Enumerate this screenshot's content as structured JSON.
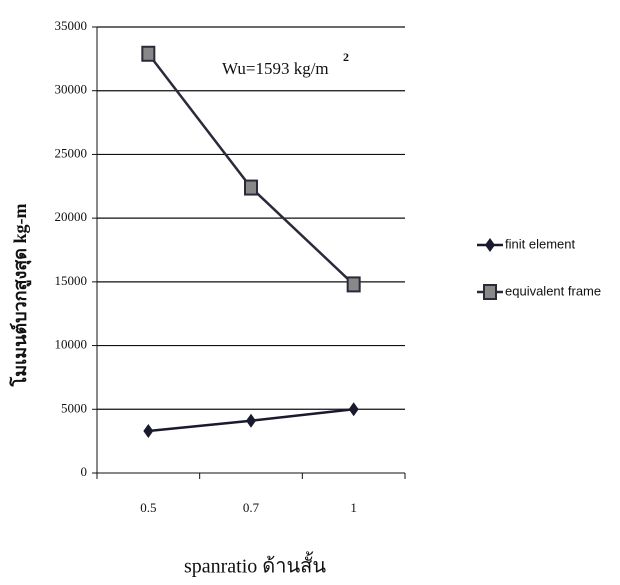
{
  "chart_data": {
    "type": "line",
    "annotation": "Wu=1593 kg/m",
    "annotation_superscript": "2",
    "x_label": "spanratio ด้านสั้น",
    "y_label": "โมเมนต์บวกสูงสุด kg-m",
    "categories": [
      "0.5",
      "0.7",
      "1"
    ],
    "series": [
      {
        "name": "finit element",
        "color": "#1a1a2e",
        "marker": "diamond",
        "values": [
          3300,
          4100,
          5000
        ]
      },
      {
        "name": "equivalent frame",
        "color": "#2a2a3a",
        "marker": "square",
        "values": [
          32900,
          22400,
          14800
        ]
      }
    ],
    "ylim": [
      0,
      35000
    ],
    "yticks": [
      0,
      5000,
      10000,
      15000,
      20000,
      25000,
      30000,
      35000
    ],
    "grid": true,
    "legend": "right"
  }
}
